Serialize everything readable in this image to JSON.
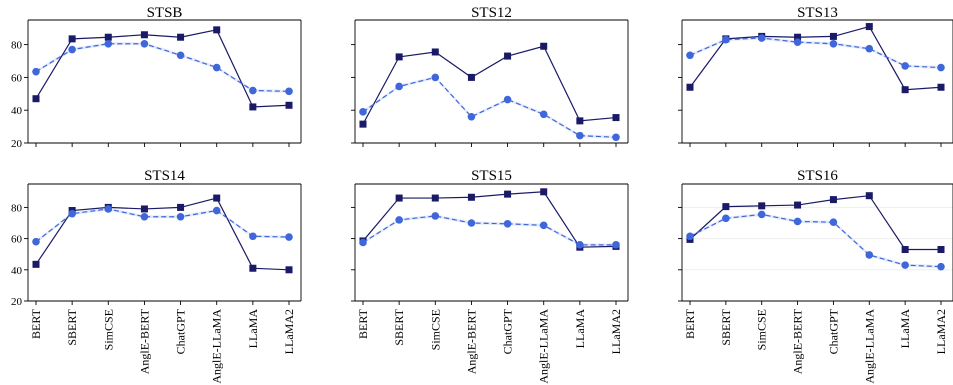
{
  "colors": {
    "series_0": "#1a1a66",
    "series_1": "#3f67d9",
    "band": "#c9d5f5"
  },
  "chart_data": [
    {
      "type": "line",
      "title": "STSB",
      "categories": [
        "BERT",
        "SBERT",
        "SimCSE",
        "AnglE-BERT",
        "ChatGPT",
        "AnglE-LLaMA",
        "LLaMA",
        "LLaMA2"
      ],
      "ylim": [
        20,
        95
      ],
      "yticks": [
        20,
        40,
        60,
        80
      ],
      "series": [
        {
          "values": [
            47,
            83.5,
            84.5,
            86,
            84.5,
            89,
            42,
            43
          ]
        },
        {
          "values": [
            63.5,
            77,
            80.5,
            80.5,
            73.5,
            66,
            52,
            51.5
          ]
        }
      ]
    },
    {
      "type": "line",
      "title": "STS12",
      "categories": [
        "BERT",
        "SBERT",
        "SimCSE",
        "AnglE-BERT",
        "ChatGPT",
        "AnglE-LLaMA",
        "LLaMA",
        "LLaMA2"
      ],
      "ylim": [
        20,
        95
      ],
      "yticks": [
        20,
        40,
        60,
        80
      ],
      "series": [
        {
          "values": [
            31.5,
            72.5,
            75.5,
            60,
            73,
            79,
            33.5,
            35.5
          ]
        },
        {
          "values": [
            39,
            54.5,
            60,
            36,
            46.5,
            37.5,
            24.5,
            23.5
          ]
        }
      ]
    },
    {
      "type": "line",
      "title": "STS13",
      "categories": [
        "BERT",
        "SBERT",
        "SimCSE",
        "AnglE-BERT",
        "ChatGPT",
        "AnglE-LLaMA",
        "LLaMA",
        "LLaMA2"
      ],
      "ylim": [
        20,
        95
      ],
      "yticks": [
        20,
        40,
        60,
        80
      ],
      "series": [
        {
          "values": [
            54,
            83.5,
            85,
            84.5,
            85,
            91,
            52.5,
            54
          ]
        },
        {
          "values": [
            73.5,
            83,
            84,
            81.5,
            80.5,
            77.5,
            67,
            66
          ]
        }
      ]
    },
    {
      "type": "line",
      "title": "STS14",
      "categories": [
        "BERT",
        "SBERT",
        "SimCSE",
        "AnglE-BERT",
        "ChatGPT",
        "AnglE-LLaMA",
        "LLaMA",
        "LLaMA2"
      ],
      "ylim": [
        20,
        95
      ],
      "yticks": [
        20,
        40,
        60,
        80
      ],
      "series": [
        {
          "values": [
            43.5,
            78,
            80,
            79,
            80,
            86,
            41,
            40
          ]
        },
        {
          "values": [
            58,
            76,
            79,
            74,
            74,
            78,
            61.5,
            61
          ]
        }
      ]
    },
    {
      "type": "line",
      "title": "STS15",
      "categories": [
        "BERT",
        "SBERT",
        "SimCSE",
        "AnglE-BERT",
        "ChatGPT",
        "AnglE-LLaMA",
        "LLaMA",
        "LLaMA2"
      ],
      "ylim": [
        20,
        95
      ],
      "yticks": [
        20,
        40,
        60,
        80
      ],
      "series": [
        {
          "values": [
            58.5,
            86,
            86,
            86.5,
            88.5,
            90,
            54.5,
            55
          ]
        },
        {
          "values": [
            57.5,
            72,
            74.5,
            70,
            69.5,
            68.5,
            56,
            56
          ]
        }
      ]
    },
    {
      "type": "line",
      "title": "STS16",
      "categories": [
        "BERT",
        "SBERT",
        "SimCSE",
        "AnglE-BERT",
        "ChatGPT",
        "AnglE-LLaMA",
        "LLaMA",
        "LLaMA2"
      ],
      "ylim": [
        20,
        95
      ],
      "yticks": [
        20,
        40,
        60,
        80
      ],
      "series": [
        {
          "values": [
            59.5,
            80.5,
            81,
            81.5,
            85,
            87.5,
            53,
            53
          ]
        },
        {
          "values": [
            61.5,
            73,
            75.5,
            71,
            70.5,
            49.5,
            43,
            42
          ]
        }
      ]
    }
  ]
}
